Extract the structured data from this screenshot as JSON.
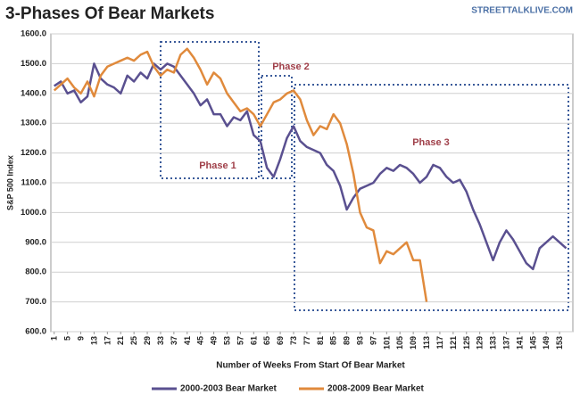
{
  "chart_data": {
    "type": "line",
    "title": "3-Phases Of Bear Markets",
    "source": "STREETTALKLIVE.COM",
    "y_label": "S&P 500 Index",
    "x_label": "Number of Weeks From Start Of Bear Market",
    "annotations": [
      "Phase 1",
      "Phase 2",
      "Phase 3"
    ],
    "xlim": [
      0,
      157
    ],
    "xticks": [
      1,
      5,
      9,
      13,
      17,
      21,
      25,
      29,
      33,
      37,
      41,
      45,
      49,
      53,
      57,
      61,
      65,
      69,
      73,
      77,
      81,
      85,
      89,
      93,
      97,
      101,
      105,
      109,
      113,
      117,
      121,
      125,
      129,
      133,
      137,
      141,
      145,
      149,
      153
    ],
    "ylim": [
      600,
      1600
    ],
    "yticks": [
      {
        "value": 600,
        "label": "600.0"
      },
      {
        "value": 700,
        "label": "700.0"
      },
      {
        "value": 800,
        "label": "800.0"
      },
      {
        "value": 900,
        "label": "900.0"
      },
      {
        "value": 1000,
        "label": "1000.0"
      },
      {
        "value": 1100,
        "label": "1100.0"
      },
      {
        "value": 1200,
        "label": "1200.0"
      },
      {
        "value": 1300,
        "label": "1300.0"
      },
      {
        "value": 1400,
        "label": "1400.0"
      },
      {
        "value": 1500,
        "label": "1500.0"
      },
      {
        "value": 1600,
        "label": "1600.0"
      }
    ],
    "grid": true,
    "series": [
      {
        "name": "2000-2003 Bear Market",
        "color": "#5a5090",
        "x": [
          1,
          3,
          5,
          7,
          9,
          11,
          13,
          15,
          17,
          19,
          21,
          23,
          25,
          27,
          29,
          31,
          33,
          35,
          37,
          39,
          41,
          43,
          45,
          47,
          49,
          51,
          53,
          55,
          57,
          59,
          61,
          63,
          65,
          67,
          69,
          71,
          73,
          75,
          77,
          79,
          81,
          83,
          85,
          87,
          89,
          91,
          93,
          95,
          97,
          99,
          101,
          103,
          105,
          107,
          109,
          111,
          113,
          115,
          117,
          119,
          121,
          123,
          125,
          127,
          129,
          131,
          133,
          135,
          137,
          139,
          141,
          143,
          145,
          147,
          149,
          151,
          153,
          155
        ],
        "values": [
          1425,
          1440,
          1400,
          1410,
          1370,
          1390,
          1500,
          1450,
          1430,
          1420,
          1400,
          1460,
          1440,
          1470,
          1450,
          1500,
          1480,
          1500,
          1490,
          1460,
          1430,
          1400,
          1360,
          1380,
          1330,
          1330,
          1290,
          1320,
          1310,
          1340,
          1260,
          1240,
          1150,
          1120,
          1180,
          1250,
          1290,
          1240,
          1220,
          1210,
          1200,
          1160,
          1140,
          1090,
          1010,
          1050,
          1080,
          1090,
          1100,
          1130,
          1150,
          1140,
          1160,
          1150,
          1130,
          1100,
          1120,
          1160,
          1150,
          1120,
          1100,
          1110,
          1070,
          1010,
          960,
          900,
          840,
          900,
          940,
          910,
          870,
          830,
          810,
          880,
          900,
          920,
          900,
          880
        ]
      },
      {
        "name": "2008-2009 Bear Market",
        "color": "#e08a3c",
        "x": [
          1,
          3,
          5,
          7,
          9,
          11,
          13,
          15,
          17,
          19,
          21,
          23,
          25,
          27,
          29,
          31,
          33,
          35,
          37,
          39,
          41,
          43,
          45,
          47,
          49,
          51,
          53,
          55,
          57,
          59,
          61,
          63,
          65,
          67,
          69,
          71,
          73,
          75,
          77,
          79,
          81,
          83,
          85,
          87,
          89,
          91,
          93,
          95,
          97,
          99,
          101,
          103,
          105,
          107,
          109,
          111,
          113
        ],
        "values": [
          1410,
          1430,
          1450,
          1420,
          1400,
          1440,
          1390,
          1460,
          1490,
          1500,
          1510,
          1520,
          1510,
          1530,
          1540,
          1490,
          1460,
          1480,
          1470,
          1530,
          1550,
          1520,
          1480,
          1430,
          1470,
          1450,
          1400,
          1370,
          1340,
          1350,
          1330,
          1290,
          1330,
          1370,
          1380,
          1400,
          1410,
          1380,
          1310,
          1260,
          1290,
          1280,
          1330,
          1300,
          1230,
          1130,
          1000,
          950,
          940,
          830,
          870,
          860,
          880,
          900,
          840,
          840,
          700
        ]
      }
    ]
  }
}
